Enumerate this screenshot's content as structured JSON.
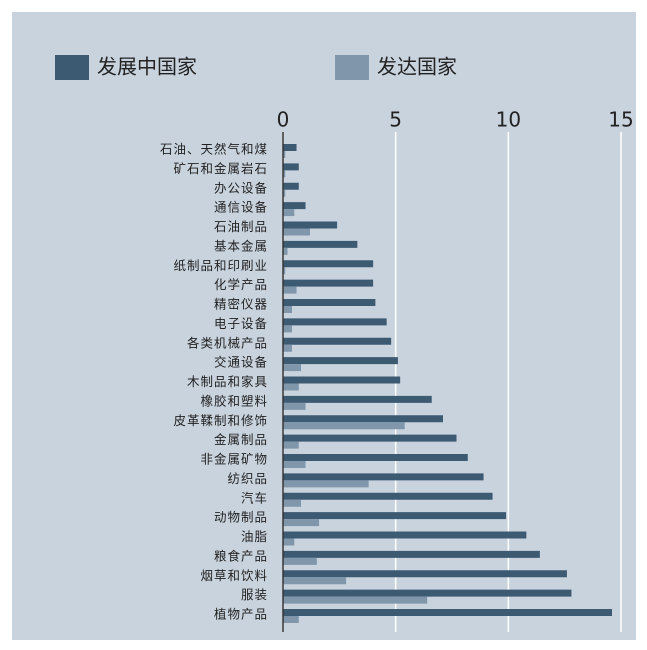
{
  "chart_data": {
    "type": "bar",
    "orientation": "horizontal",
    "categories": [
      "石油、天然气和煤",
      "矿石和金属岩石",
      "办公设备",
      "通信设备",
      "石油制品",
      "基本金属",
      "纸制品和印刷业",
      "化学产品",
      "精密仪器",
      "电子设备",
      "各类机械产品",
      "交通设备",
      "木制品和家具",
      "橡胶和塑料",
      "皮革鞣制和修饰",
      "金属制品",
      "非金属矿物",
      "纺织品",
      "汽车",
      "动物制品",
      "油脂",
      "粮食产品",
      "烟草和饮料",
      "服装",
      "植物产品"
    ],
    "series": [
      {
        "name": "发展中国家",
        "color": "#3d5a73",
        "values": [
          0.6,
          0.7,
          0.7,
          1.0,
          2.4,
          3.3,
          4.0,
          4.0,
          4.1,
          4.6,
          4.8,
          5.1,
          5.2,
          6.6,
          7.1,
          7.7,
          8.2,
          8.9,
          9.3,
          9.9,
          10.8,
          11.4,
          12.6,
          12.8,
          14.6
        ]
      },
      {
        "name": "发达国家",
        "color": "#8096ab",
        "values": [
          0.1,
          0.1,
          0.1,
          0.5,
          1.2,
          0.2,
          0.1,
          0.6,
          0.4,
          0.4,
          0.4,
          0.8,
          0.7,
          1.0,
          5.4,
          0.7,
          1.0,
          3.8,
          0.8,
          1.6,
          0.5,
          1.5,
          2.8,
          6.4,
          0.7
        ]
      }
    ],
    "xlim": [
      0,
      15
    ],
    "xticks": [
      0,
      5,
      10,
      15
    ],
    "grid": true,
    "legend": "top"
  }
}
